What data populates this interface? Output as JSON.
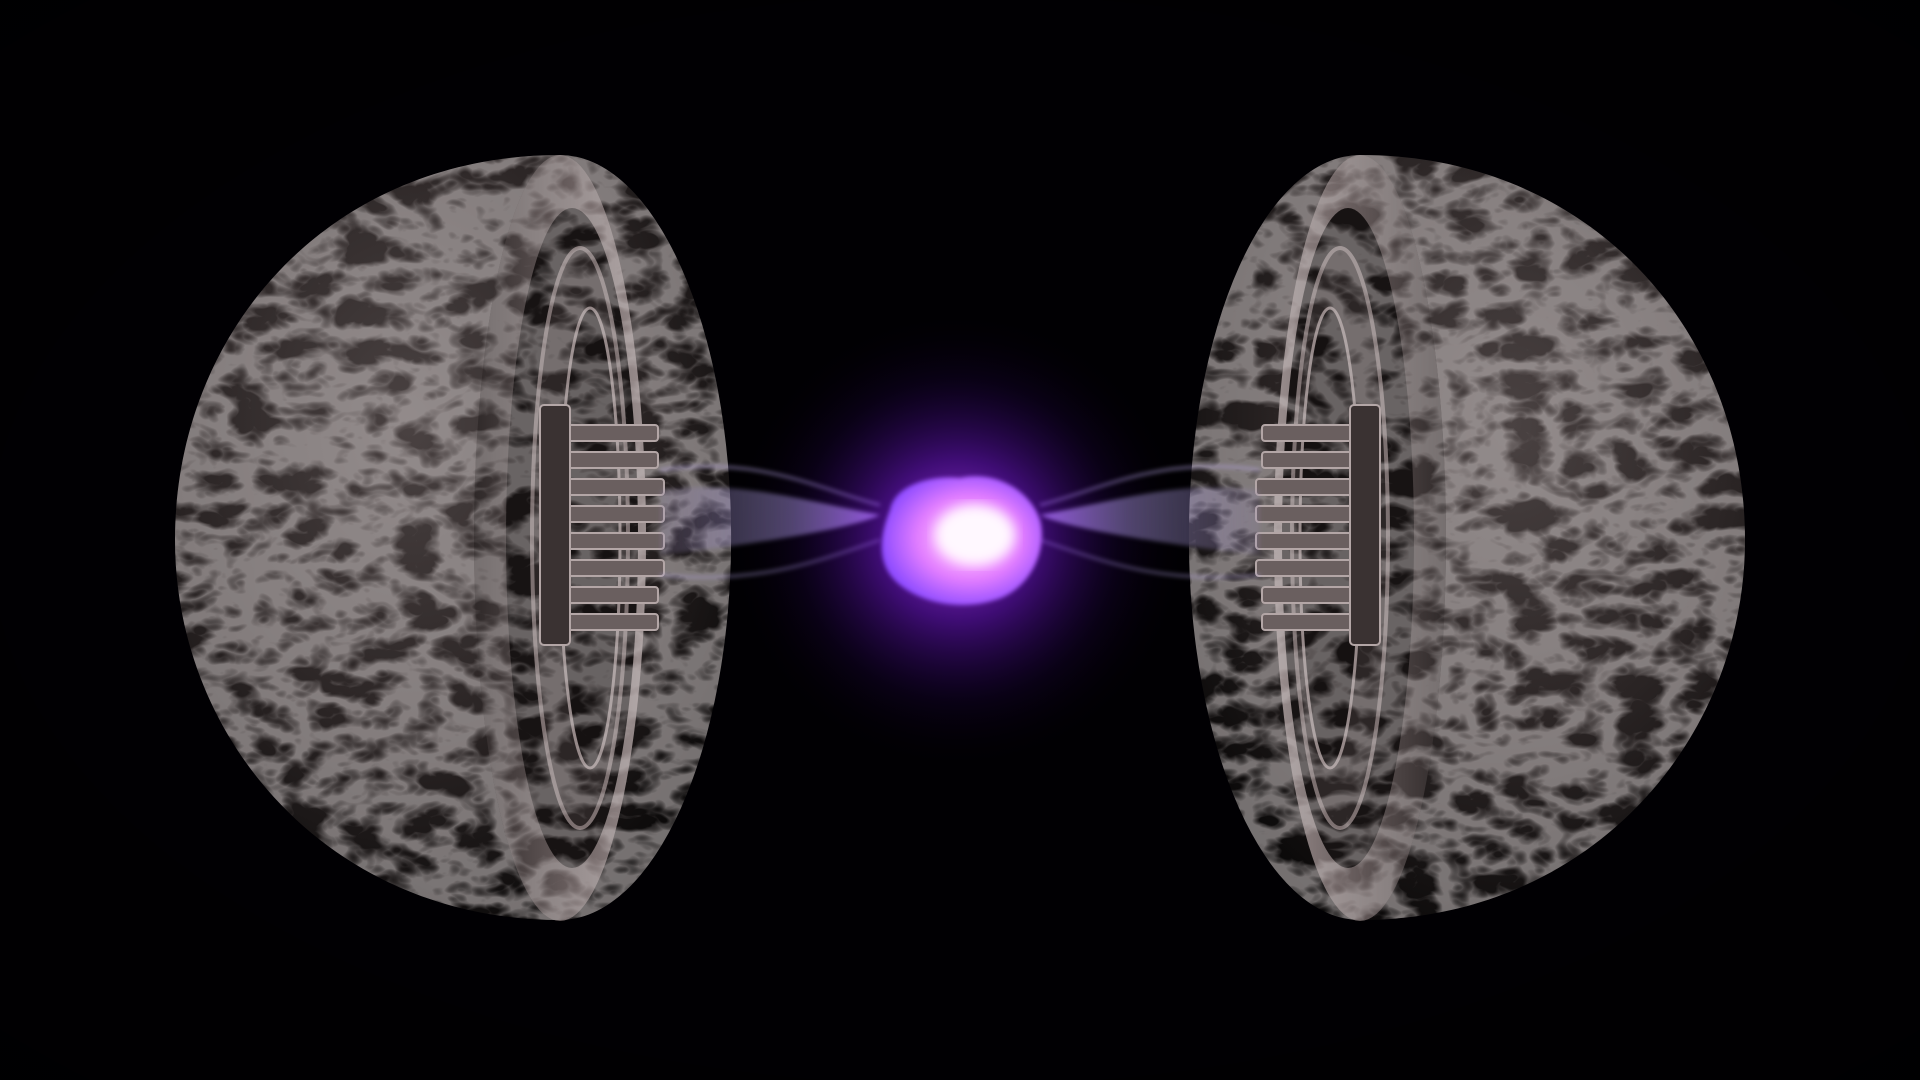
{
  "scene": {
    "colors": {
      "background": "#010003",
      "metal_dark": "#1c1818",
      "metal_mid": "#4a4242",
      "metal_light": "#a89c9c",
      "glow_core": "#fff4ff",
      "glow_inner": "#f08cff",
      "glow_outer": "#8a1cff",
      "beam": "#9a8cc8"
    },
    "objects": {
      "left_hemisphere": {
        "icon": "metal-hemisphere",
        "facing": "right"
      },
      "right_hemisphere": {
        "icon": "metal-hemisphere",
        "facing": "left"
      },
      "energy_core": {
        "icon": "glowing-orb",
        "color": "purple"
      },
      "beams": {
        "icon": "plasma-streams",
        "count": 2
      }
    }
  }
}
